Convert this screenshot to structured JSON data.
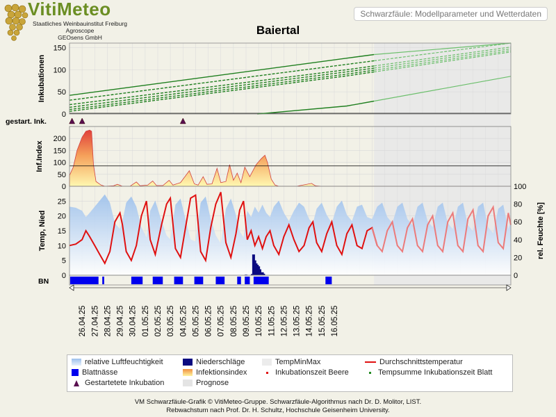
{
  "header": {
    "logo_title": "VitiMeteo",
    "logo_lines": [
      "Staatliches Weinbauinstitut Freiburg",
      "Agroscope",
      "GEOsens GmbH"
    ],
    "top_right": "Schwarzfäule: Modellparameter und Wetterdaten",
    "station": "Baiertal"
  },
  "colors": {
    "background": "#f2f1e7",
    "incubation": "#228b22",
    "temp_avg": "#e01010",
    "humidity": "#a8c8ee",
    "precip": "#0a0a80",
    "leaf_wet": "#0000ee",
    "prognose": "#e8e8e8",
    "marker": "#5a1050"
  },
  "chart_data": [
    {
      "type": "line",
      "panel": "Inkubationen",
      "ylabel": "Inkubationen",
      "ylim": [
        0,
        160
      ],
      "yticks": [
        0,
        50,
        100,
        150
      ],
      "series": [
        {
          "points": [
            [
              0,
              42
            ],
            [
              22,
              126
            ],
            [
              35,
              175
            ]
          ]
        },
        {
          "points": [
            [
              0,
              31
            ],
            [
              22,
              112
            ],
            [
              35,
              160
            ]
          ]
        },
        {
          "points": [
            [
              0,
              21
            ],
            [
              22,
              100
            ],
            [
              35,
              151
            ]
          ]
        },
        {
          "points": [
            [
              0,
              15
            ],
            [
              22,
              95
            ],
            [
              35,
              147
            ]
          ]
        },
        {
          "points": [
            [
              0,
              10
            ],
            [
              22,
              90
            ],
            [
              35,
              143
            ]
          ]
        },
        {
          "points": [
            [
              0,
              6
            ],
            [
              22,
              86
            ],
            [
              35,
              140
            ]
          ]
        },
        {
          "points": [
            [
              14.9,
              0
            ],
            [
              22,
              18
            ],
            [
              35,
              85
            ]
          ]
        }
      ]
    },
    {
      "type": "scatter",
      "panel": "gestart. Ink.",
      "ylabel": "gestart. Ink.",
      "x": [
        0.2,
        1.0,
        9.0
      ]
    },
    {
      "type": "area",
      "panel": "Inf.Index",
      "ylabel": "Inf.Index",
      "ylim": [
        0,
        250
      ],
      "yticks": [
        0,
        50,
        100,
        150,
        200
      ],
      "threshold": 85,
      "points": [
        [
          0,
          45
        ],
        [
          0.3,
          80
        ],
        [
          0.6,
          150
        ],
        [
          1.0,
          205
        ],
        [
          1.3,
          230
        ],
        [
          1.6,
          235
        ],
        [
          1.75,
          230
        ],
        [
          1.9,
          90
        ],
        [
          2.1,
          20
        ],
        [
          2.5,
          5
        ],
        [
          2.8,
          0
        ],
        [
          3.5,
          2
        ],
        [
          3.8,
          8
        ],
        [
          4.2,
          0
        ],
        [
          4.8,
          0
        ],
        [
          5.3,
          18
        ],
        [
          5.6,
          2
        ],
        [
          6.2,
          5
        ],
        [
          6.6,
          22
        ],
        [
          6.9,
          3
        ],
        [
          7.4,
          3
        ],
        [
          7.9,
          25
        ],
        [
          8.2,
          5
        ],
        [
          8.8,
          15
        ],
        [
          9.5,
          65
        ],
        [
          9.9,
          10
        ],
        [
          10.2,
          5
        ],
        [
          10.6,
          40
        ],
        [
          10.9,
          8
        ],
        [
          11.3,
          10
        ],
        [
          11.7,
          75
        ],
        [
          12.0,
          15
        ],
        [
          12.4,
          20
        ],
        [
          12.7,
          90
        ],
        [
          13.0,
          25
        ],
        [
          13.3,
          55
        ],
        [
          13.6,
          15
        ],
        [
          13.9,
          80
        ],
        [
          14.3,
          40
        ],
        [
          14.8,
          90
        ],
        [
          15.2,
          115
        ],
        [
          15.5,
          130
        ],
        [
          15.7,
          100
        ],
        [
          16.0,
          30
        ],
        [
          16.3,
          5
        ],
        [
          16.6,
          0
        ],
        [
          18,
          0
        ],
        [
          19.2,
          12
        ],
        [
          19.5,
          2
        ],
        [
          20,
          0
        ],
        [
          35,
          0
        ]
      ]
    },
    {
      "type": "line",
      "panel": "Temp, Nied",
      "ylabel": "Temp, Nied",
      "ylabel_right": "rel. Feuchte [%]",
      "ylim": [
        0,
        30
      ],
      "yticks": [
        0,
        5,
        10,
        15,
        20,
        25
      ],
      "ylim_right": [
        0,
        100
      ],
      "yticks_right": [
        0,
        20,
        40,
        60,
        80,
        100
      ],
      "temp_avg": [
        [
          0,
          10
        ],
        [
          0.5,
          10.5
        ],
        [
          1,
          12
        ],
        [
          1.3,
          15
        ],
        [
          1.6,
          13
        ],
        [
          2,
          10
        ],
        [
          2.4,
          7
        ],
        [
          2.8,
          4
        ],
        [
          3.2,
          8
        ],
        [
          3.6,
          18
        ],
        [
          4,
          21
        ],
        [
          4.2,
          17
        ],
        [
          4.5,
          8
        ],
        [
          4.9,
          5
        ],
        [
          5.3,
          10
        ],
        [
          5.7,
          20
        ],
        [
          6.1,
          25
        ],
        [
          6.4,
          12
        ],
        [
          6.8,
          7
        ],
        [
          7.3,
          17
        ],
        [
          7.7,
          24
        ],
        [
          8,
          26
        ],
        [
          8.4,
          9
        ],
        [
          8.8,
          6
        ],
        [
          9.2,
          16
        ],
        [
          9.6,
          26
        ],
        [
          10,
          27
        ],
        [
          10.4,
          8
        ],
        [
          10.8,
          5
        ],
        [
          11.2,
          16
        ],
        [
          11.6,
          24
        ],
        [
          12,
          28
        ],
        [
          12.4,
          11
        ],
        [
          12.8,
          6
        ],
        [
          13.2,
          14
        ],
        [
          13.5,
          22
        ],
        [
          13.8,
          25
        ],
        [
          14.1,
          12
        ],
        [
          14.4,
          15
        ],
        [
          14.7,
          10
        ],
        [
          15,
          13
        ],
        [
          15.3,
          9
        ],
        [
          15.6,
          13
        ],
        [
          15.9,
          15
        ],
        [
          16.2,
          10
        ],
        [
          16.6,
          7
        ],
        [
          17,
          13
        ],
        [
          17.4,
          17
        ],
        [
          17.8,
          12
        ],
        [
          18.2,
          8
        ],
        [
          18.6,
          10
        ],
        [
          19,
          16
        ],
        [
          19.3,
          18
        ],
        [
          19.6,
          11
        ],
        [
          20,
          8
        ],
        [
          20.4,
          14
        ],
        [
          20.8,
          18
        ],
        [
          21.2,
          10
        ],
        [
          21.6,
          7
        ],
        [
          22,
          14
        ],
        [
          22.4,
          17
        ],
        [
          22.8,
          10
        ],
        [
          23.2,
          9
        ],
        [
          23.6,
          15
        ],
        [
          24,
          16
        ],
        [
          24.4,
          10
        ],
        [
          24.8,
          8
        ],
        [
          25.2,
          15
        ],
        [
          25.6,
          18
        ],
        [
          26,
          10
        ],
        [
          26.4,
          8
        ],
        [
          26.8,
          16
        ],
        [
          27.2,
          19
        ],
        [
          27.6,
          10
        ],
        [
          28,
          8
        ],
        [
          28.4,
          17
        ],
        [
          28.8,
          20
        ],
        [
          29.2,
          10
        ],
        [
          29.6,
          8
        ],
        [
          30,
          18
        ],
        [
          30.4,
          21
        ],
        [
          30.8,
          10
        ],
        [
          31.2,
          8
        ],
        [
          31.6,
          19
        ],
        [
          32,
          22
        ],
        [
          32.4,
          10
        ],
        [
          32.8,
          8
        ],
        [
          33.2,
          20
        ],
        [
          33.6,
          23
        ],
        [
          34,
          11
        ],
        [
          34.4,
          9
        ],
        [
          34.8,
          21
        ],
        [
          35,
          17
        ]
      ],
      "forecast_from": 24.15,
      "precip": [
        [
          14.0,
          0.2
        ],
        [
          14.5,
          0.4
        ],
        [
          14.6,
          7
        ],
        [
          14.7,
          5
        ],
        [
          14.8,
          4
        ],
        [
          14.9,
          3.5
        ],
        [
          15.0,
          3
        ],
        [
          15.1,
          2
        ],
        [
          15.3,
          1
        ],
        [
          15.4,
          0.5
        ]
      ]
    },
    {
      "type": "bar",
      "panel": "BN",
      "ylabel": "BN",
      "intervals": [
        [
          0.05,
          2.3
        ],
        [
          2.6,
          2.75
        ],
        [
          4.9,
          5.8
        ],
        [
          6.6,
          7.4
        ],
        [
          8.3,
          9.0
        ],
        [
          9.9,
          10.6
        ],
        [
          11.6,
          12.3
        ],
        [
          13.3,
          13.6
        ],
        [
          13.9,
          14.3
        ],
        [
          14.6,
          15.8
        ],
        [
          20.3,
          20.8
        ]
      ]
    }
  ],
  "x_axis": {
    "start_day": 25.0,
    "labels": [
      "26.04.25",
      "27.04.25",
      "28.04.25",
      "29.04.25",
      "30.04.25",
      "01.05.25",
      "02.05.25",
      "03.05.25",
      "04.05.25",
      "05.05.25",
      "06.05.25",
      "07.05.25",
      "08.05.25",
      "09.05.25",
      "10.05.25",
      "11.05.25",
      "12.05.25",
      "13.05.25",
      "14.05.25",
      "15.05.25",
      "16.05.25"
    ],
    "forecast_from_index": 24.15
  },
  "legend": [
    {
      "label": "relative Luftfeuchtigkeit",
      "icon": "humidity-swatch"
    },
    {
      "label": "Niederschläge",
      "icon": "precip-swatch"
    },
    {
      "label": "TempMinMax",
      "icon": "tempminmax-swatch"
    },
    {
      "label": "Durchschnittstemperatur",
      "icon": "temp-line"
    },
    {
      "label": "Blattnässe",
      "icon": "leafwet-swatch"
    },
    {
      "label": "Infektionsindex",
      "icon": "infindex-swatch"
    },
    {
      "label": "Inkubationszeit Beere",
      "icon": "dot-red"
    },
    {
      "label": "Tempsumme Inkubationszeit Blatt",
      "icon": "dot-green"
    },
    {
      "label": "Gestartetete Inkubation",
      "icon": "triangle-marker"
    },
    {
      "label": "Prognose",
      "icon": "prognose-swatch"
    }
  ],
  "footer": {
    "line1": "VM Schwarzfäule-Grafik © VitiMeteo-Gruppe. Schwarzfäule-Algorithmus nach Dr. D. Molitor, LIST.",
    "line2": "Rebwachstum nach Prof. Dr. H. Schultz, Hochschule Geisenheim University."
  }
}
